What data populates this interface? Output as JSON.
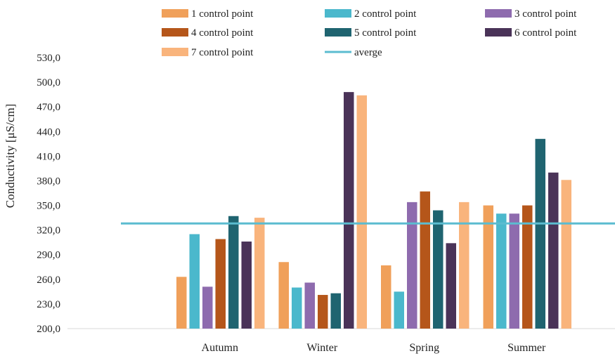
{
  "chart_data": {
    "type": "bar",
    "title": "",
    "xlabel": "",
    "ylabel": "Conductivity [μS/cm]",
    "ylim": [
      200,
      530
    ],
    "yticks": [
      "200,0",
      "230,0",
      "260,0",
      "290,0",
      "320,0",
      "350,0",
      "380,0",
      "410,0",
      "440,0",
      "470,0",
      "500,0",
      "530,0"
    ],
    "grid": false,
    "legend_position": "top",
    "categories": [
      "Autumn",
      "Winter",
      "Spring",
      "Summer"
    ],
    "series": [
      {
        "name": "1 control point",
        "color": "#F0A05A",
        "values": [
          263,
          281,
          277,
          350
        ]
      },
      {
        "name": "2 control point",
        "color": "#4BB8CC",
        "values": [
          315,
          250,
          245,
          340
        ]
      },
      {
        "name": "3 control point",
        "color": "#8E6BAE",
        "values": [
          251,
          256,
          354,
          340
        ]
      },
      {
        "name": "4 control point",
        "color": "#B5561A",
        "values": [
          309,
          241,
          367,
          350
        ]
      },
      {
        "name": "5 control point",
        "color": "#1F6470",
        "values": [
          337,
          243,
          344,
          431
        ]
      },
      {
        "name": "6 control point",
        "color": "#4A3358",
        "values": [
          306,
          488,
          304,
          390
        ]
      },
      {
        "name": "7 control point",
        "color": "#F9B47C",
        "values": [
          335,
          484,
          354,
          381
        ]
      }
    ],
    "reference_line": {
      "name": "averge",
      "color": "#5BBCD0",
      "value": 328
    }
  }
}
